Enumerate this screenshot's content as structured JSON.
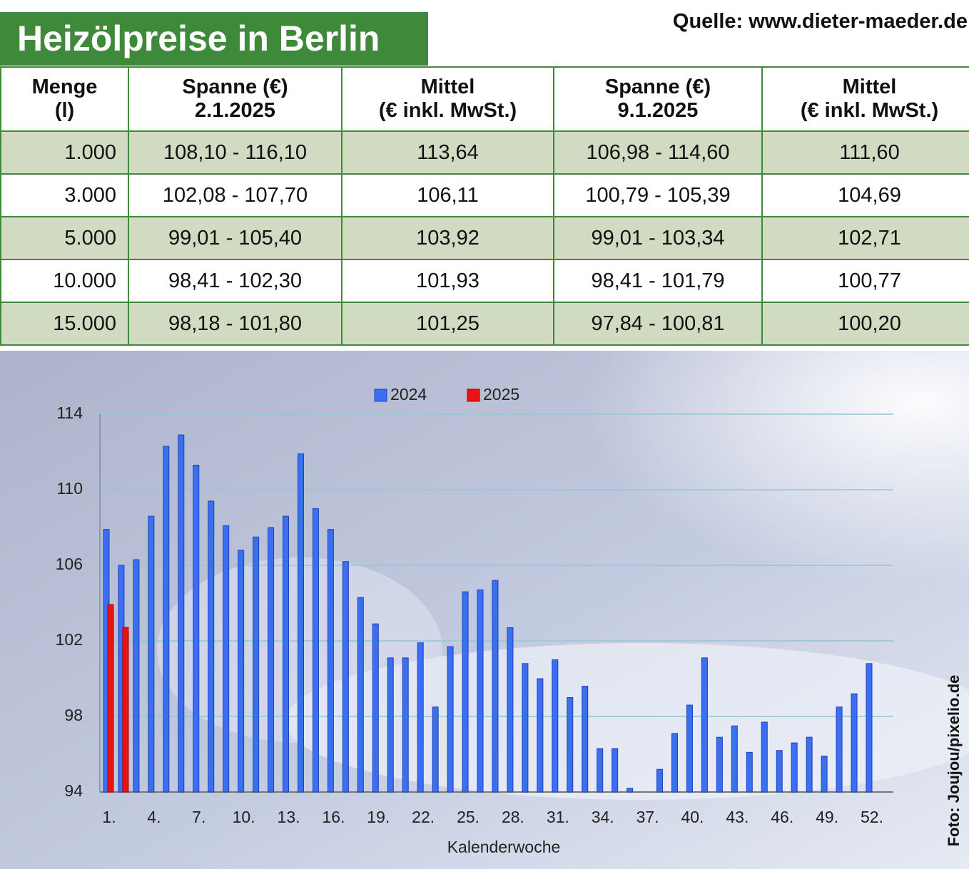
{
  "title": "Heizölpreise in Berlin",
  "source": "Quelle: www.dieter-maeder.de",
  "photo_credit": "Foto: Joujou/pixelio.de",
  "table": {
    "headers": [
      [
        "Menge",
        "(l)"
      ],
      [
        "Spanne (€)",
        "2.1.2025"
      ],
      [
        "Mittel",
        "(€ inkl. MwSt.)"
      ],
      [
        "Spanne (€)",
        "9.1.2025"
      ],
      [
        "Mittel",
        "(€ inkl. MwSt.)"
      ]
    ],
    "rows": [
      [
        "1.000",
        "108,10 - 116,10",
        "113,64",
        "106,98 - 114,60",
        "111,60"
      ],
      [
        "3.000",
        "102,08 - 107,70",
        "106,11",
        "100,79 - 105,39",
        "104,69"
      ],
      [
        "5.000",
        "99,01 - 105,40",
        "103,92",
        "99,01 - 103,34",
        "102,71"
      ],
      [
        "10.000",
        "98,41 - 102,30",
        "101,93",
        "98,41 - 101,79",
        "100,77"
      ],
      [
        "15.000",
        "98,18 - 101,80",
        "101,25",
        "97,84 - 100,81",
        "100,20"
      ]
    ]
  },
  "chart_data": {
    "type": "bar",
    "x_label": "Kalenderwoche",
    "categories": [
      "1.",
      null,
      null,
      "4.",
      null,
      null,
      "7.",
      null,
      null,
      "10.",
      null,
      null,
      "13.",
      null,
      null,
      "16.",
      null,
      null,
      "19.",
      null,
      null,
      "22.",
      null,
      null,
      "25.",
      null,
      null,
      "28.",
      null,
      null,
      "31.",
      null,
      null,
      "34.",
      null,
      null,
      "37.",
      null,
      null,
      "40.",
      null,
      null,
      "43.",
      null,
      null,
      "46.",
      null,
      null,
      "49.",
      null,
      null,
      "52."
    ],
    "series": [
      {
        "name": "2024",
        "color": "#3a6ff0",
        "values": [
          107.9,
          106.0,
          106.3,
          108.6,
          112.3,
          112.9,
          111.3,
          109.4,
          108.1,
          106.8,
          107.5,
          108.0,
          108.6,
          111.9,
          109.0,
          107.9,
          106.2,
          104.3,
          102.9,
          101.1,
          101.1,
          101.9,
          98.5,
          101.7,
          104.6,
          104.7,
          105.2,
          102.7,
          100.8,
          100.0,
          101.0,
          99.0,
          99.6,
          96.3,
          96.3,
          94.2,
          null,
          95.2,
          97.1,
          98.6,
          101.1,
          96.9,
          97.5,
          96.1,
          97.7,
          96.2,
          96.6,
          96.9,
          95.9,
          98.5,
          99.2,
          100.8
        ]
      },
      {
        "name": "2025",
        "color": "#ee1111",
        "values": [
          103.92,
          102.71,
          null,
          null,
          null,
          null,
          null,
          null,
          null,
          null,
          null,
          null,
          null,
          null,
          null,
          null,
          null,
          null,
          null,
          null,
          null,
          null,
          null,
          null,
          null,
          null,
          null,
          null,
          null,
          null,
          null,
          null,
          null,
          null,
          null,
          null,
          null,
          null,
          null,
          null,
          null,
          null,
          null,
          null,
          null,
          null,
          null,
          null,
          null,
          null,
          null,
          null
        ]
      }
    ],
    "ylim": [
      94,
      114
    ],
    "yticks": [
      94,
      98,
      102,
      106,
      110,
      114
    ],
    "grid": true
  }
}
